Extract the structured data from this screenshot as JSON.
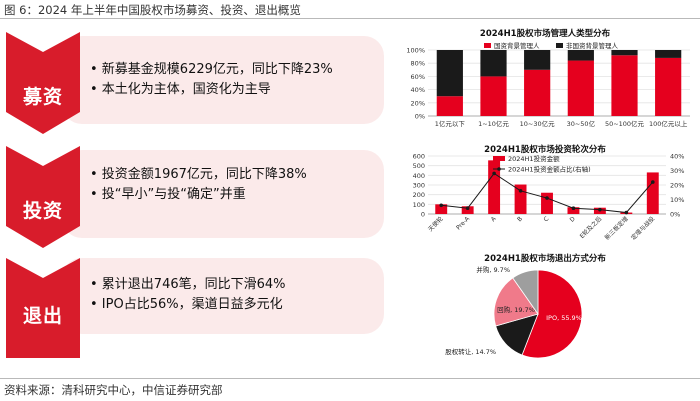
{
  "figure_title": "图 6：2024 年上半年中国股权市场募资、投资、退出概览",
  "source_note": "资料来源：清科研究中心，中信证券研究部",
  "sections": [
    {
      "label": "募资",
      "bullets": [
        "• 新募基金规模6229亿元，同比下降23%",
        "• 本土化为主体，国资化为主导"
      ]
    },
    {
      "label": "投资",
      "bullets": [
        "• 投资金额1967亿元，同比下降38%",
        "• 投“早小”与投“确定”并重"
      ]
    },
    {
      "label": "退出",
      "bullets": [
        "• 累计退出746笔，同比下滑64%",
        "• IPO占比56%，渠道日益多元化"
      ]
    }
  ],
  "colors": {
    "red": "#e5001e",
    "black": "#1a1a1a",
    "pink": "#f07a8a",
    "gray": "#9e9e9e",
    "pill_bg": "#fbeaea"
  },
  "chart_data": [
    {
      "type": "bar",
      "stacked": true,
      "percent": true,
      "title": "2024H1股权市场管理人类型分布",
      "categories": [
        "1亿元以下",
        "1~10亿元",
        "10~30亿元",
        "30~50亿",
        "50~100亿元",
        "100亿元以上"
      ],
      "series": [
        {
          "name": "国资背景管理人",
          "color": "#e5001e",
          "values": [
            30,
            60,
            70,
            84,
            92,
            88
          ]
        },
        {
          "name": "非国资背景管理人",
          "color": "#1a1a1a",
          "values": [
            70,
            40,
            30,
            16,
            8,
            12
          ]
        }
      ],
      "ylim": [
        0,
        100
      ],
      "yticks": [
        "0%",
        "20%",
        "40%",
        "60%",
        "80%",
        "100%"
      ],
      "grid": true,
      "legend": "top"
    },
    {
      "type": "bar+line",
      "title": "2024H1股权市场投资轮次分布",
      "categories": [
        "天使轮",
        "Pre-A",
        "A",
        "B",
        "C",
        "D",
        "E轮及之后",
        "新三板定增",
        "定增与战投"
      ],
      "series": [
        {
          "name": "2024H1投资金额",
          "type": "bar",
          "color": "#e5001e",
          "values": [
            100,
            80,
            555,
            305,
            220,
            70,
            65,
            15,
            430
          ]
        },
        {
          "name": "2024H1投资金额占比(右轴)",
          "type": "line",
          "axis": "right",
          "color": "#1a1a1a",
          "values": [
            6,
            4,
            28,
            16,
            11,
            4,
            3,
            1,
            22
          ]
        }
      ],
      "ylim": [
        0,
        600
      ],
      "yticks": [
        "0",
        "100",
        "200",
        "300",
        "400",
        "500",
        "600"
      ],
      "y2lim": [
        0,
        40
      ],
      "y2ticks": [
        "0%",
        "10%",
        "20%",
        "30%",
        "40%"
      ],
      "grid": true,
      "legend": "top-center"
    },
    {
      "type": "pie",
      "title": "2024H1股权市场退出方式分布",
      "slices": [
        {
          "label": "IPO",
          "value": 55.9,
          "text": "IPO, 55.9%",
          "color": "#e5001e"
        },
        {
          "label": "股权转让",
          "value": 14.7,
          "text": "股权转让, 14.7%",
          "color": "#1a1a1a"
        },
        {
          "label": "回购",
          "value": 19.7,
          "text": "回购, 19.7%",
          "color": "#f07a8a"
        },
        {
          "label": "并购",
          "value": 9.7,
          "text": "并购, 9.7%",
          "color": "#9e9e9e"
        }
      ]
    }
  ]
}
